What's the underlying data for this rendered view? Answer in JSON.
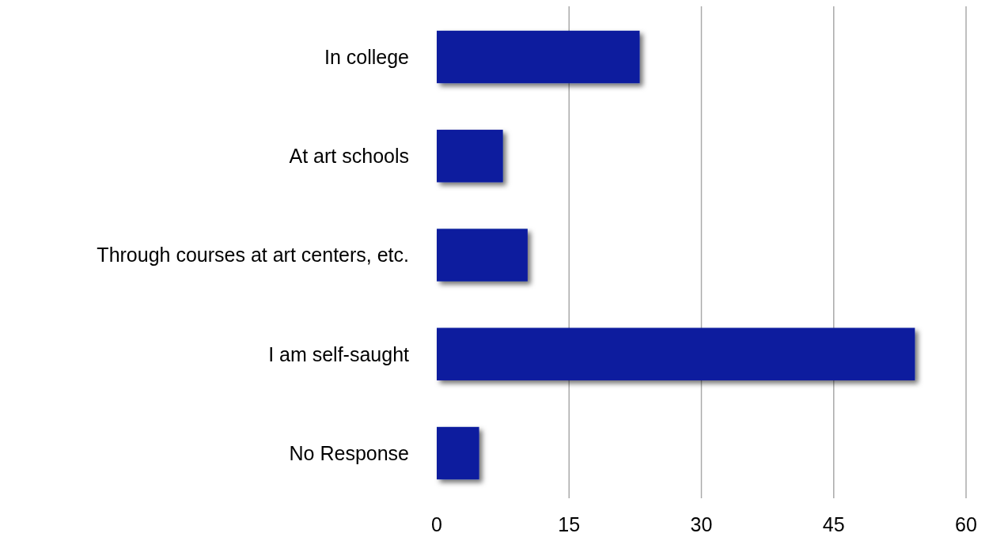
{
  "chart_data": {
    "type": "bar",
    "orientation": "horizontal",
    "categories": [
      "In college",
      "At art schools",
      "Through courses at art centers, etc.",
      "I am self-saught",
      "No Response"
    ],
    "values": [
      23,
      7.5,
      10.3,
      54.2,
      4.8
    ],
    "color": "#0a1a9e",
    "xlim": [
      0,
      60
    ],
    "xticks": [
      0,
      15,
      30,
      45,
      60
    ],
    "grid": "x"
  }
}
